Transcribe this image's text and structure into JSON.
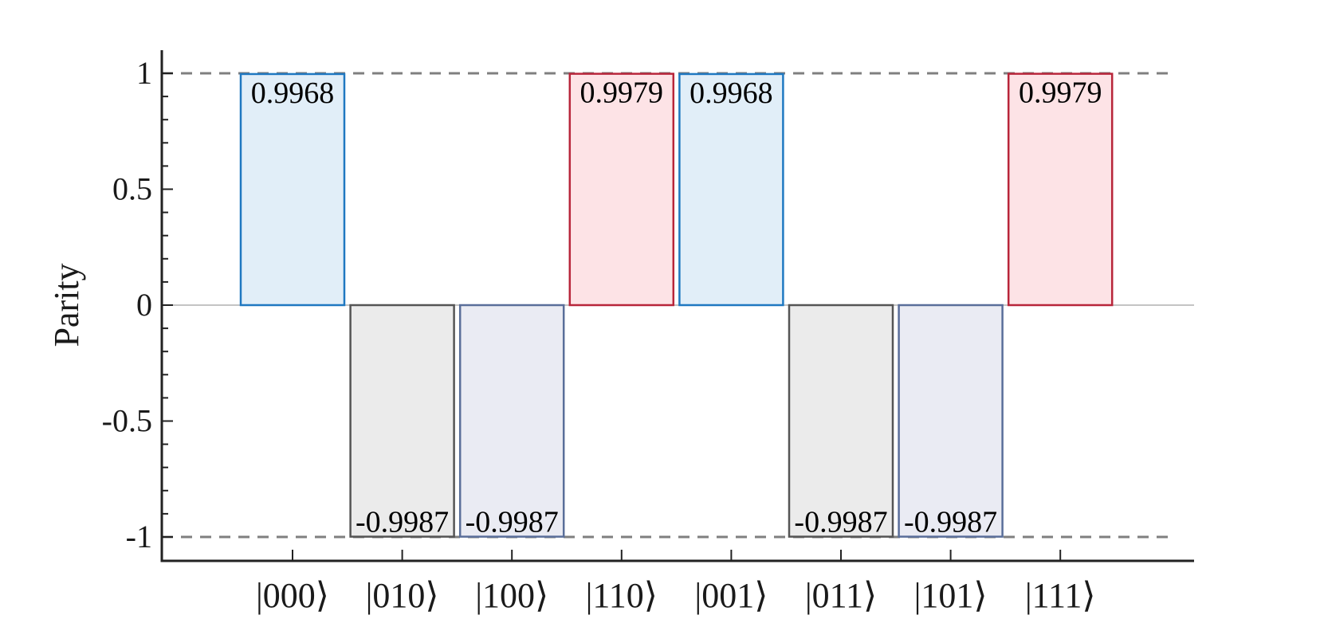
{
  "chart_data": {
    "type": "bar",
    "categories": [
      "|000⟩",
      "|010⟩",
      "|100⟩",
      "|110⟩",
      "|001⟩",
      "|011⟩",
      "|101⟩",
      "|111⟩"
    ],
    "values": [
      0.9968,
      -0.9987,
      -0.9987,
      0.9979,
      0.9968,
      -0.9987,
      -0.9987,
      0.9979
    ],
    "value_labels": [
      "0.9968",
      "-0.9987",
      "-0.9987",
      "0.9979",
      "0.9968",
      "-0.9987",
      "-0.9987",
      "0.9979"
    ],
    "bar_colors": [
      {
        "stroke": "#1f78c1",
        "fill": "#e1eef8"
      },
      {
        "stroke": "#555555",
        "fill": "#ebebeb"
      },
      {
        "stroke": "#5a6e9a",
        "fill": "#eaebf3"
      },
      {
        "stroke": "#b8253a",
        "fill": "#fde3e6"
      },
      {
        "stroke": "#1f78c1",
        "fill": "#e1eef8"
      },
      {
        "stroke": "#555555",
        "fill": "#ebebeb"
      },
      {
        "stroke": "#5a6e9a",
        "fill": "#eaebf3"
      },
      {
        "stroke": "#b8253a",
        "fill": "#fde3e6"
      }
    ],
    "title": "",
    "xlabel": "",
    "ylabel": "Parity",
    "ylim": [
      -1.1,
      1.1
    ],
    "yticks": [
      1,
      0.5,
      0,
      -0.5,
      -1
    ],
    "ytick_labels": [
      "1",
      "0.5",
      "0",
      "-0.5",
      "-1"
    ],
    "reference_lines": [
      1,
      -1
    ],
    "grid": false,
    "legend": "none"
  }
}
